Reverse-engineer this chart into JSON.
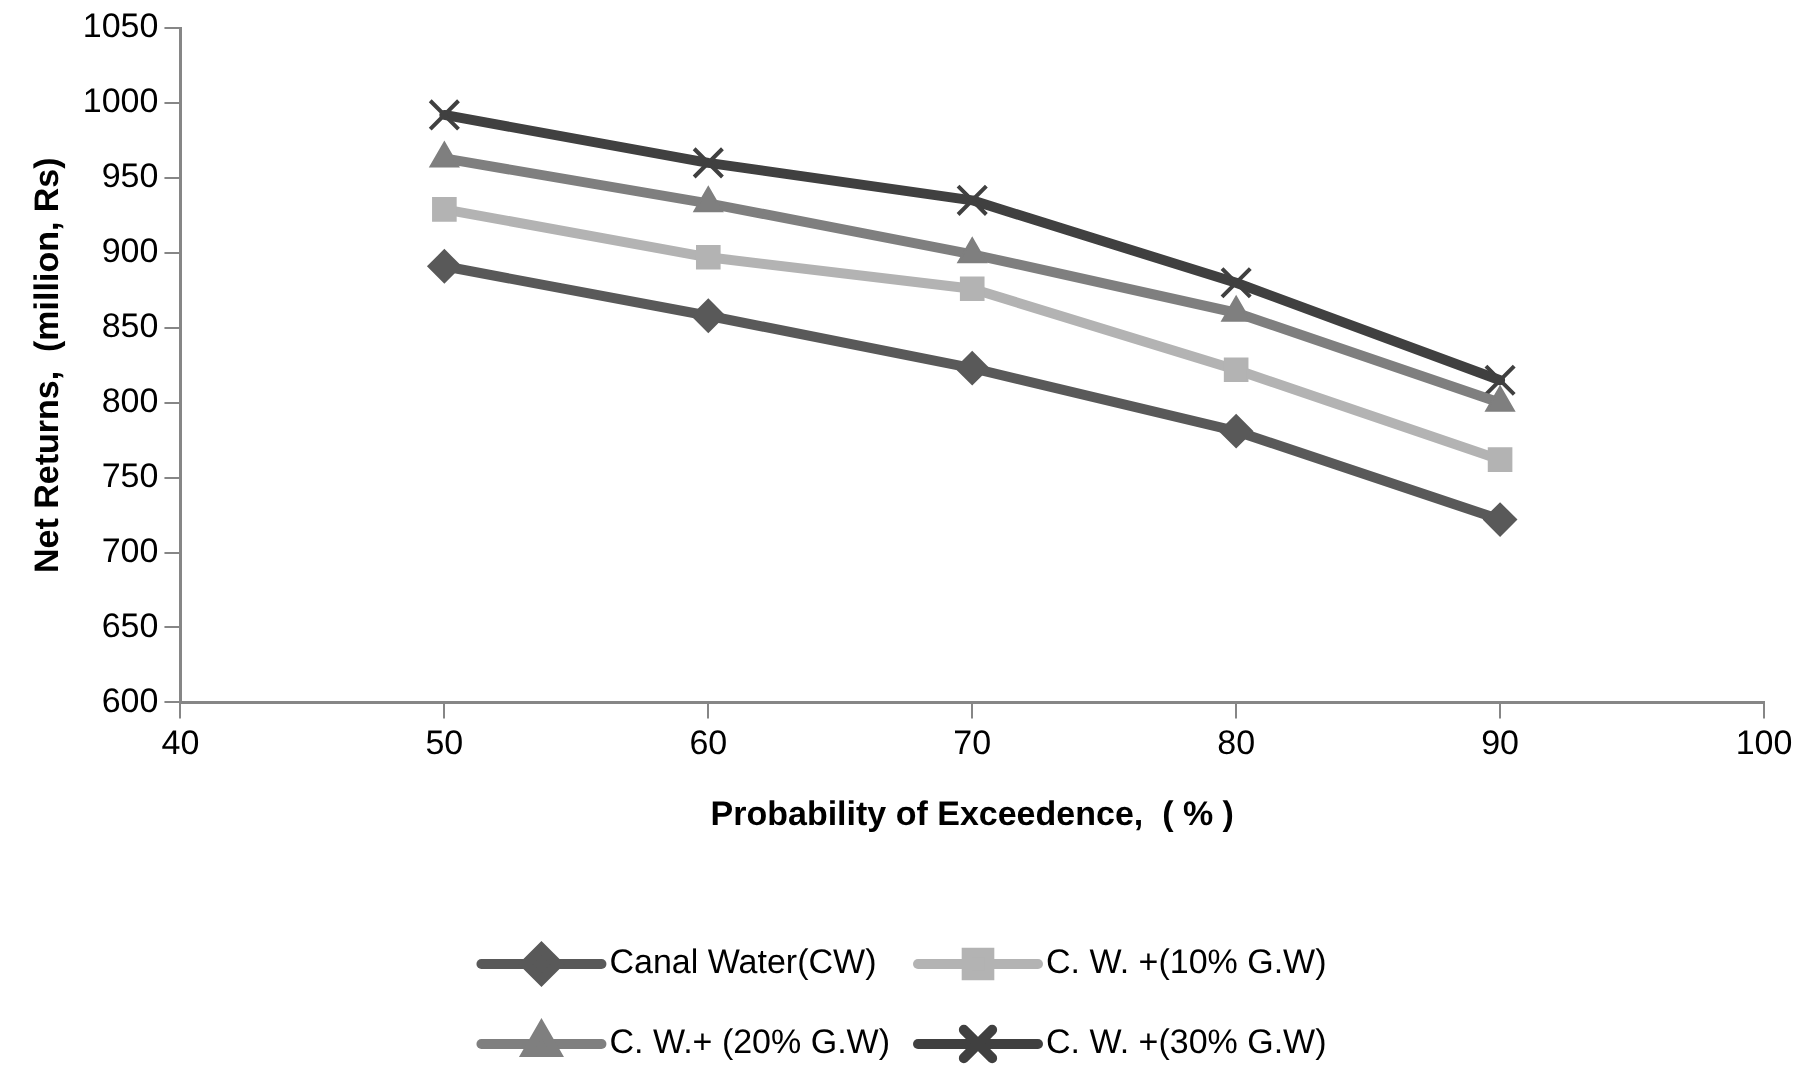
{
  "chart_data": {
    "type": "line",
    "xlabel": "Probability of Exceedence,  ( % )",
    "ylabel": "Net Returns,  (million, Rs)",
    "x": [
      50,
      60,
      70,
      80,
      90
    ],
    "xlim": [
      40,
      100
    ],
    "xticks": [
      40,
      50,
      60,
      70,
      80,
      90,
      100
    ],
    "ylim": [
      600,
      1050
    ],
    "yticks": [
      600,
      650,
      700,
      750,
      800,
      850,
      900,
      950,
      1000,
      1050
    ],
    "grid": false,
    "legend": "bottom",
    "line_style": "solid",
    "series": [
      {
        "name": "Canal Water(CW)",
        "color": "#595959",
        "marker": "diamond",
        "values": [
          891,
          858,
          823,
          781,
          722
        ]
      },
      {
        "name": "C. W. +(10% G.W)",
        "color": "#b3b3b3",
        "marker": "square",
        "values": [
          929,
          897,
          876,
          822,
          762
        ]
      },
      {
        "name": "C. W.+ (20% G.W)",
        "color": "#7f7f7f",
        "marker": "triangle",
        "values": [
          963,
          933,
          899,
          860,
          800
        ]
      },
      {
        "name": "C. W. +(30% G.W)",
        "color": "#404040",
        "marker": "cross",
        "values": [
          992,
          960,
          935,
          880,
          815
        ]
      }
    ]
  }
}
